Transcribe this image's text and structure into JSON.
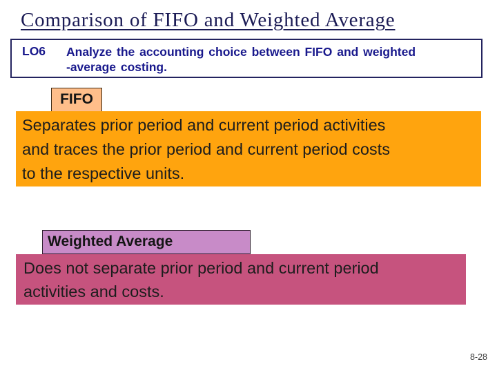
{
  "slide": {
    "title": "Comparison of FIFO and Weighted Average",
    "learning_objective": {
      "code": "LO6",
      "lines": [
        "Analyze the accounting choice between FIFO and weighted",
        "-average costing."
      ]
    },
    "fifo_section": {
      "label": "FIFO",
      "lines": [
        "Separates prior period and current period activities",
        "and traces the prior period and current period costs",
        "to the respective units."
      ]
    },
    "weighted_average_section": {
      "label": "Weighted Average",
      "lines": [
        "Does not separate prior period and current period",
        "activities and costs."
      ]
    },
    "page_number": "8-28",
    "colors": {
      "title_text": "#1b1b55",
      "objective_text": "#18188c",
      "objective_border": "#23235f",
      "fifo_label_bg": "#ffbe8a",
      "fifo_body_bg": "#ffa40e",
      "weighted_label_bg": "#c88bc8",
      "weighted_body_bg": "#c6537e"
    }
  }
}
